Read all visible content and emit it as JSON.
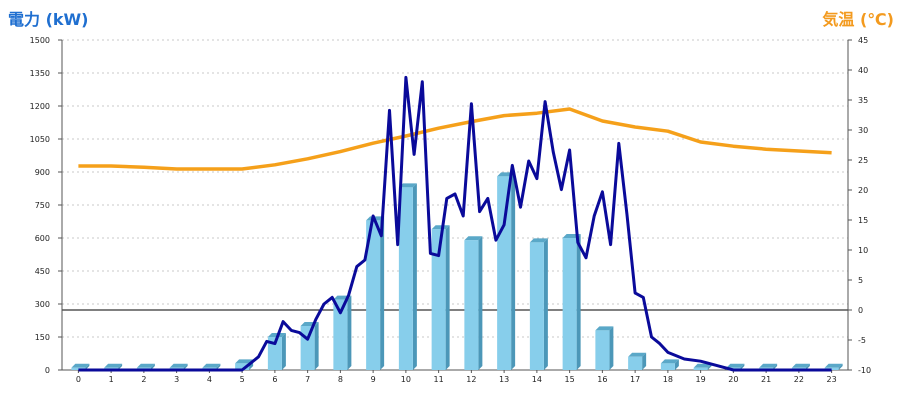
{
  "chart_data": {
    "type": "bar",
    "ylabel_left": "電力 (kW)",
    "ylabel_right": "気温 (℃)",
    "ylim_left": [
      0,
      1500
    ],
    "ylim_right": [
      -10,
      45
    ],
    "yticks_left": [
      0,
      150,
      300,
      450,
      600,
      750,
      900,
      1050,
      1200,
      1350,
      1500
    ],
    "yticks_right": [
      -10,
      -5,
      0,
      5,
      10,
      15,
      20,
      25,
      30,
      35,
      40,
      45
    ],
    "grid": true,
    "categories": [
      "0",
      "1",
      "2",
      "3",
      "4",
      "5",
      "6",
      "7",
      "8",
      "9",
      "10",
      "11",
      "12",
      "13",
      "14",
      "15",
      "16",
      "17",
      "18",
      "19",
      "20",
      "21",
      "22",
      "23"
    ],
    "series": [
      {
        "kind": "bar",
        "axis": "left",
        "color": "#87ceeb",
        "values": [
          10,
          10,
          10,
          10,
          10,
          30,
          150,
          200,
          320,
          680,
          830,
          640,
          590,
          880,
          580,
          600,
          180,
          60,
          30,
          10,
          10,
          10,
          10,
          10
        ]
      },
      {
        "kind": "line",
        "axis": "left",
        "color": "#0a0a9a",
        "x": [
          0,
          0.5,
          1,
          1.5,
          2,
          2.5,
          3,
          3.5,
          4,
          4.5,
          5,
          5.25,
          5.5,
          5.75,
          6,
          6.25,
          6.5,
          6.75,
          7,
          7.25,
          7.5,
          7.75,
          8,
          8.25,
          8.5,
          8.75,
          9,
          9.25,
          9.5,
          9.75,
          10,
          10.25,
          10.5,
          10.75,
          11,
          11.25,
          11.5,
          11.75,
          12,
          12.25,
          12.5,
          12.75,
          13,
          13.25,
          13.5,
          13.75,
          14,
          14.25,
          14.5,
          14.75,
          15,
          15.25,
          15.5,
          15.75,
          16,
          16.25,
          16.5,
          16.75,
          17,
          17.25,
          17.5,
          17.75,
          18,
          18.5,
          19,
          19.5,
          20,
          20.5,
          21,
          21.5,
          22,
          22.5,
          23
        ],
        "values": [
          0,
          0,
          0,
          0,
          0,
          0,
          0,
          0,
          0,
          0,
          0,
          30,
          60,
          130,
          120,
          220,
          180,
          170,
          140,
          230,
          300,
          330,
          260,
          340,
          470,
          500,
          700,
          610,
          1180,
          570,
          1330,
          980,
          1310,
          530,
          520,
          780,
          800,
          700,
          1210,
          720,
          780,
          590,
          660,
          930,
          740,
          950,
          870,
          1220,
          990,
          820,
          1000,
          580,
          510,
          700,
          810,
          570,
          1030,
          710,
          350,
          330,
          150,
          120,
          80,
          50,
          40,
          20,
          0,
          0,
          0,
          0,
          0,
          0,
          0
        ]
      },
      {
        "kind": "line",
        "axis": "right",
        "color": "#f5a01a",
        "values": [
          24,
          24,
          23.8,
          23.5,
          23.5,
          23.5,
          24.2,
          25.2,
          26.4,
          27.8,
          29,
          30.3,
          31.4,
          32.4,
          32.8,
          33.5,
          31.5,
          30.5,
          29.8,
          28,
          27.3,
          26.8,
          26.5,
          26.2
        ]
      }
    ]
  }
}
